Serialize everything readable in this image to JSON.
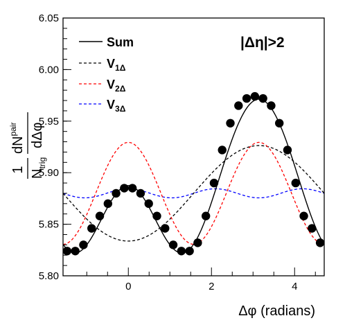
{
  "chart_data": {
    "type": "line",
    "annotation": "|Δη|>2",
    "xlabel": "Δφ (radians)",
    "ylabel": {
      "prefix": "1",
      "prefix_denom": "N",
      "prefix_denom_sub": "trig",
      "num": "dN",
      "num_sup": "pair",
      "denom": "dΔφ"
    },
    "xlim": [
      -1.5708,
      4.7124
    ],
    "ylim": [
      5.8,
      6.05
    ],
    "x_ticks": [
      {
        "value": 0,
        "label": "0"
      },
      {
        "value": 2,
        "label": "2"
      },
      {
        "value": 4,
        "label": "4"
      }
    ],
    "y_ticks": [
      {
        "value": 5.8,
        "label": "5.80"
      },
      {
        "value": 5.85,
        "label": "5.85"
      },
      {
        "value": 5.9,
        "label": "5.90"
      },
      {
        "value": 5.95,
        "label": "5.95"
      },
      {
        "value": 6.0,
        "label": "6.00"
      },
      {
        "value": 6.05,
        "label": "6.05"
      }
    ],
    "legend": {
      "placement": "top-left",
      "entries": [
        {
          "main": "Sum",
          "sub": "",
          "color": "#000000",
          "dash": "solid"
        },
        {
          "main": "V",
          "sub": "1Δ",
          "color": "#000000",
          "dash": "dashed"
        },
        {
          "main": "V",
          "sub": "2Δ",
          "color": "#ff0000",
          "dash": "dashed"
        },
        {
          "main": "V",
          "sub": "3Δ",
          "color": "#0000ff",
          "dash": "dashed"
        }
      ]
    },
    "model": {
      "baseline": 5.88,
      "v1_amp": -0.0463,
      "v2_amp": 0.0494,
      "v3_amp": 0.0044
    },
    "series": [
      {
        "name": "Sum",
        "color": "#000000",
        "style": "solid"
      },
      {
        "name": "V1Δ",
        "color": "#000000",
        "style": "dashed"
      },
      {
        "name": "V2Δ",
        "color": "#ff0000",
        "style": "dashed"
      },
      {
        "name": "V3Δ",
        "color": "#0000ff",
        "style": "dashed"
      }
    ],
    "data_points": {
      "x": [
        -1.4726,
        -1.2763,
        -1.0799,
        -0.8836,
        -0.6872,
        -0.4909,
        -0.2945,
        -0.0982,
        0.0982,
        0.2945,
        0.4909,
        0.6872,
        0.8836,
        1.0799,
        1.2763,
        1.4726,
        1.669,
        1.8653,
        2.0617,
        2.258,
        2.4544,
        2.6507,
        2.8471,
        3.0434,
        3.2398,
        3.4361,
        3.6325,
        3.8288,
        4.0252,
        4.2215,
        4.4179,
        4.6142
      ],
      "y": [
        5.824,
        5.824,
        5.83,
        5.846,
        5.858,
        5.87,
        5.88,
        5.885,
        5.885,
        5.88,
        5.87,
        5.858,
        5.846,
        5.83,
        5.824,
        5.824,
        5.832,
        5.858,
        5.89,
        5.922,
        5.948,
        5.965,
        5.972,
        5.974,
        5.972,
        5.965,
        5.948,
        5.922,
        5.89,
        5.858,
        5.846,
        5.832
      ]
    }
  },
  "colors": {
    "sum": "#000000",
    "v1": "#000000",
    "v2": "#ff0000",
    "v3": "#0000ff",
    "markers": "#000000"
  }
}
